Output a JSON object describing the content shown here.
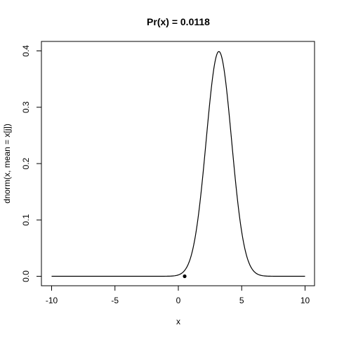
{
  "chart_data": {
    "type": "line",
    "title": "Pr(x) = 0.0118",
    "xlabel": "x",
    "ylabel": "dnorm(x, mean = x[j])",
    "xlim": [
      -10,
      10
    ],
    "ylim": [
      0,
      0.4
    ],
    "x_ticks": [
      -10,
      -5,
      0,
      5,
      10
    ],
    "x_tick_labels": [
      "-10",
      "-5",
      "0",
      "5",
      "10"
    ],
    "y_ticks": [
      0.0,
      0.1,
      0.2,
      0.3,
      0.4
    ],
    "y_tick_labels": [
      "0.0",
      "0.1",
      "0.2",
      "0.3",
      "0.4"
    ],
    "series": [
      {
        "curve": "normal density",
        "mean": 3.2,
        "sd": 1,
        "x_range": [
          -10,
          10
        ],
        "color": "#000000"
      }
    ],
    "points": [
      {
        "x": 0.5,
        "y": 0.0,
        "color": "#000000"
      }
    ],
    "grid": false,
    "frame": true
  }
}
